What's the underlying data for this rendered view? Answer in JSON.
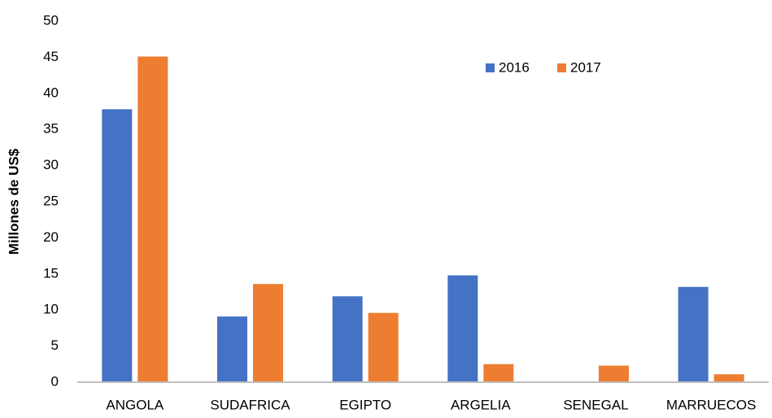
{
  "chart_data": {
    "type": "bar",
    "y_label": "Millones de US$",
    "categories": [
      "ANGOLA",
      "SUDAFRICA",
      "EGIPTO",
      "ARGELIA",
      "SENEGAL",
      "MARRUECOS"
    ],
    "series": [
      {
        "name": "2016",
        "color": "#4472c4",
        "values": [
          37.8,
          9.1,
          11.9,
          14.8,
          0.1,
          13.2
        ]
      },
      {
        "name": "2017",
        "color": "#ed7d31",
        "values": [
          45.1,
          13.6,
          9.6,
          2.5,
          2.3,
          1.1
        ]
      }
    ],
    "ylim": [
      0,
      50
    ],
    "yticks": [
      0,
      5,
      10,
      15,
      20,
      25,
      30,
      35,
      40,
      45,
      50
    ],
    "grid": false,
    "legend": "top-right"
  }
}
